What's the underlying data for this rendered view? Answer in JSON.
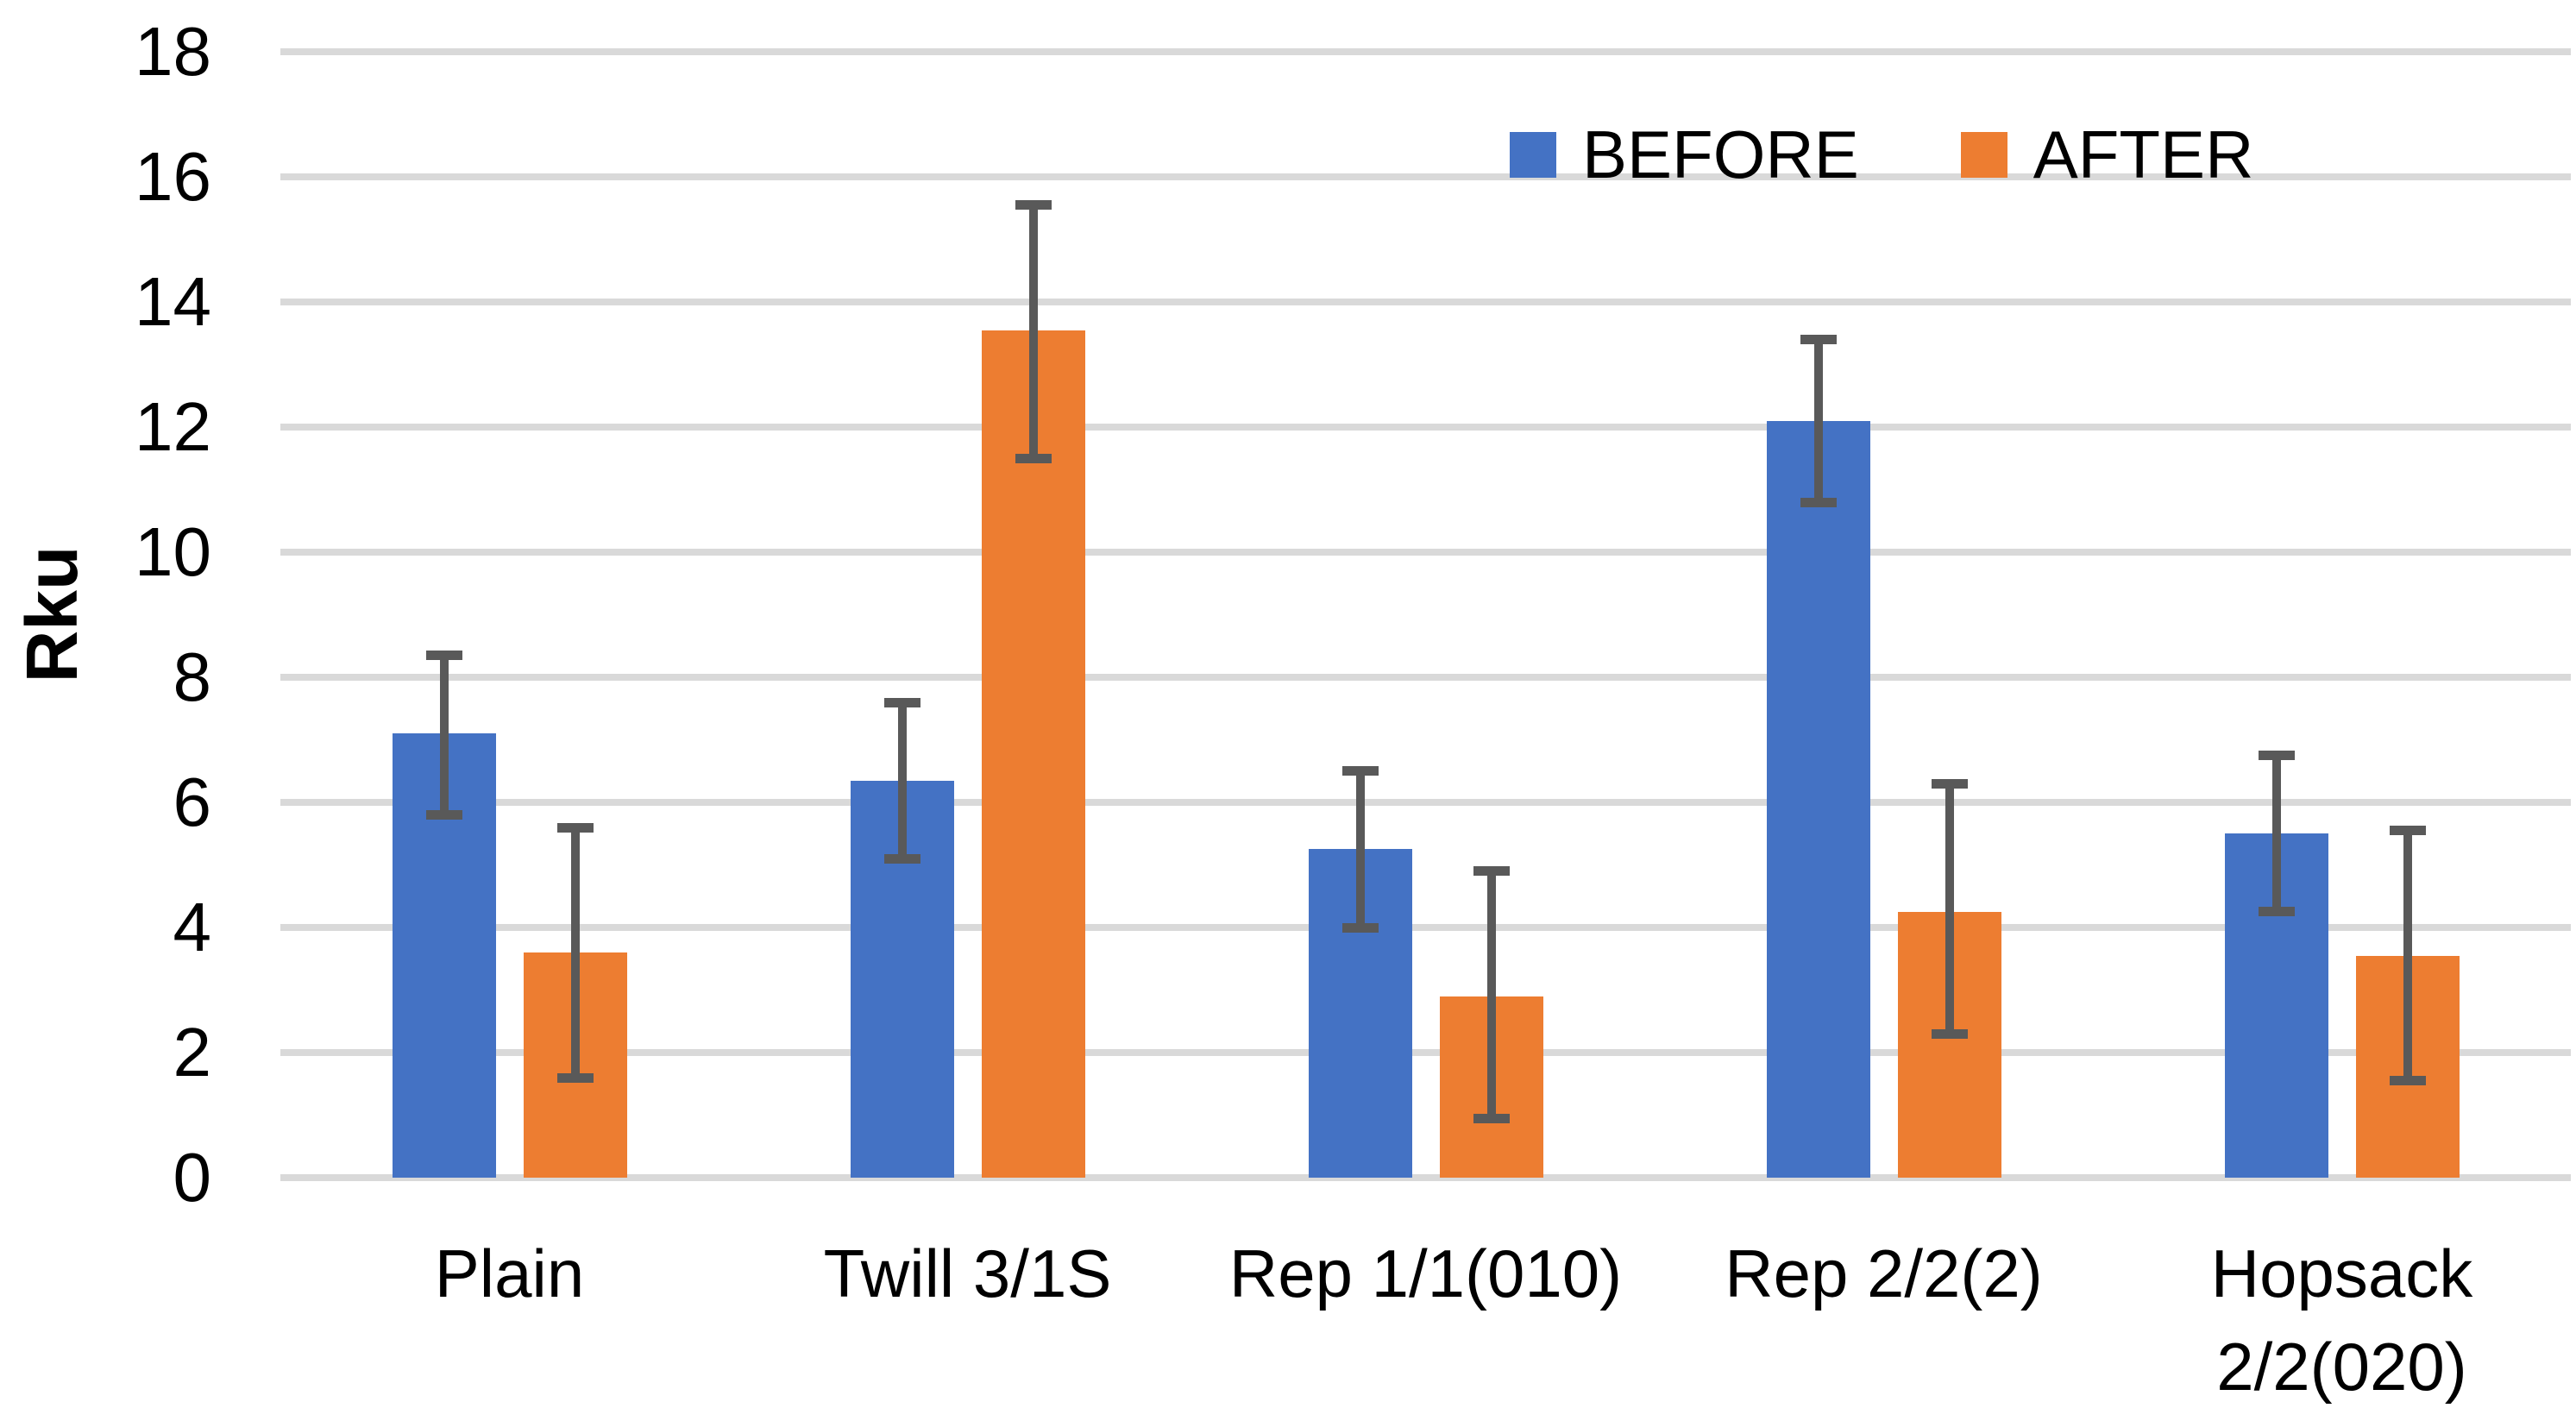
{
  "chart_data": {
    "type": "bar",
    "title": "",
    "xlabel": "",
    "ylabel": "Rku",
    "ylim": [
      0,
      18
    ],
    "yticks": [
      0,
      2,
      4,
      6,
      8,
      10,
      12,
      14,
      16,
      18
    ],
    "grid": true,
    "legend_position": "top-right-inside",
    "categories": [
      "Plain",
      "Twill 3/1S",
      "Rep 1/1(010)",
      "Rep 2/2(2)",
      "Hopsack 2/2(020)"
    ],
    "series": [
      {
        "name": "BEFORE",
        "color": "#4472C4",
        "values": [
          7.1,
          6.35,
          5.25,
          12.1,
          5.5
        ],
        "error_low": [
          5.8,
          5.1,
          4.0,
          10.8,
          4.25
        ],
        "error_high": [
          8.35,
          7.6,
          6.5,
          13.4,
          6.75
        ]
      },
      {
        "name": "AFTER",
        "color": "#ED7D31",
        "values": [
          3.6,
          13.55,
          2.9,
          4.25,
          3.55
        ],
        "error_low": [
          1.6,
          11.5,
          0.95,
          2.3,
          1.55
        ],
        "error_high": [
          5.6,
          15.55,
          4.9,
          6.3,
          5.55
        ]
      }
    ],
    "colors": {
      "error_bar": "#595959",
      "gridline": "#D9D9D9",
      "text": "#000000",
      "background": "#FFFFFF"
    }
  }
}
